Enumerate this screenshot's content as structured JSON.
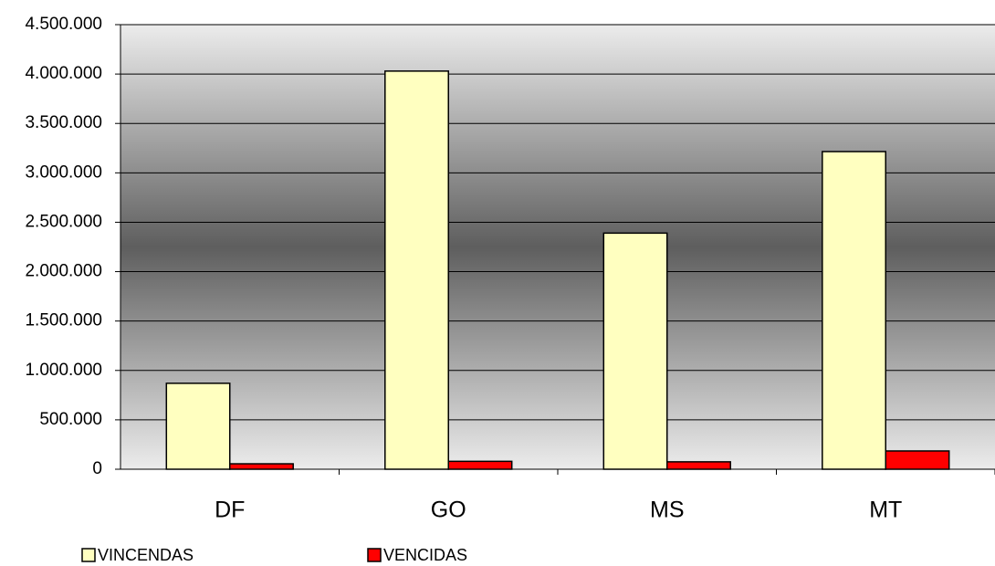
{
  "chart_data": {
    "type": "bar",
    "categories": [
      "DF",
      "GO",
      "MS",
      "MT"
    ],
    "series": [
      {
        "name": "VINCENDAS",
        "color": "#ffffc0",
        "values": [
          870000,
          4030000,
          2390000,
          3215000
        ]
      },
      {
        "name": "VENCIDAS",
        "color": "#ff0000",
        "values": [
          55000,
          80000,
          75000,
          185000
        ]
      }
    ],
    "ylim": [
      0,
      4500000
    ],
    "yticks": [
      0,
      {
        "value": 500000,
        "label": "500.000"
      },
      {
        "value": 1000000,
        "label": "1.000.000"
      },
      {
        "value": 1500000,
        "label": "1.500.000"
      },
      {
        "value": 2000000,
        "label": "2.000.000"
      },
      {
        "value": 2500000,
        "label": "2.500.000"
      },
      {
        "value": 3000000,
        "label": "3.000.000"
      },
      {
        "value": 3500000,
        "label": "3.500.000"
      },
      {
        "value": 4000000,
        "label": "4.000.000"
      },
      {
        "value": 4500000,
        "label": "4.500.000"
      }
    ],
    "grid": true
  }
}
